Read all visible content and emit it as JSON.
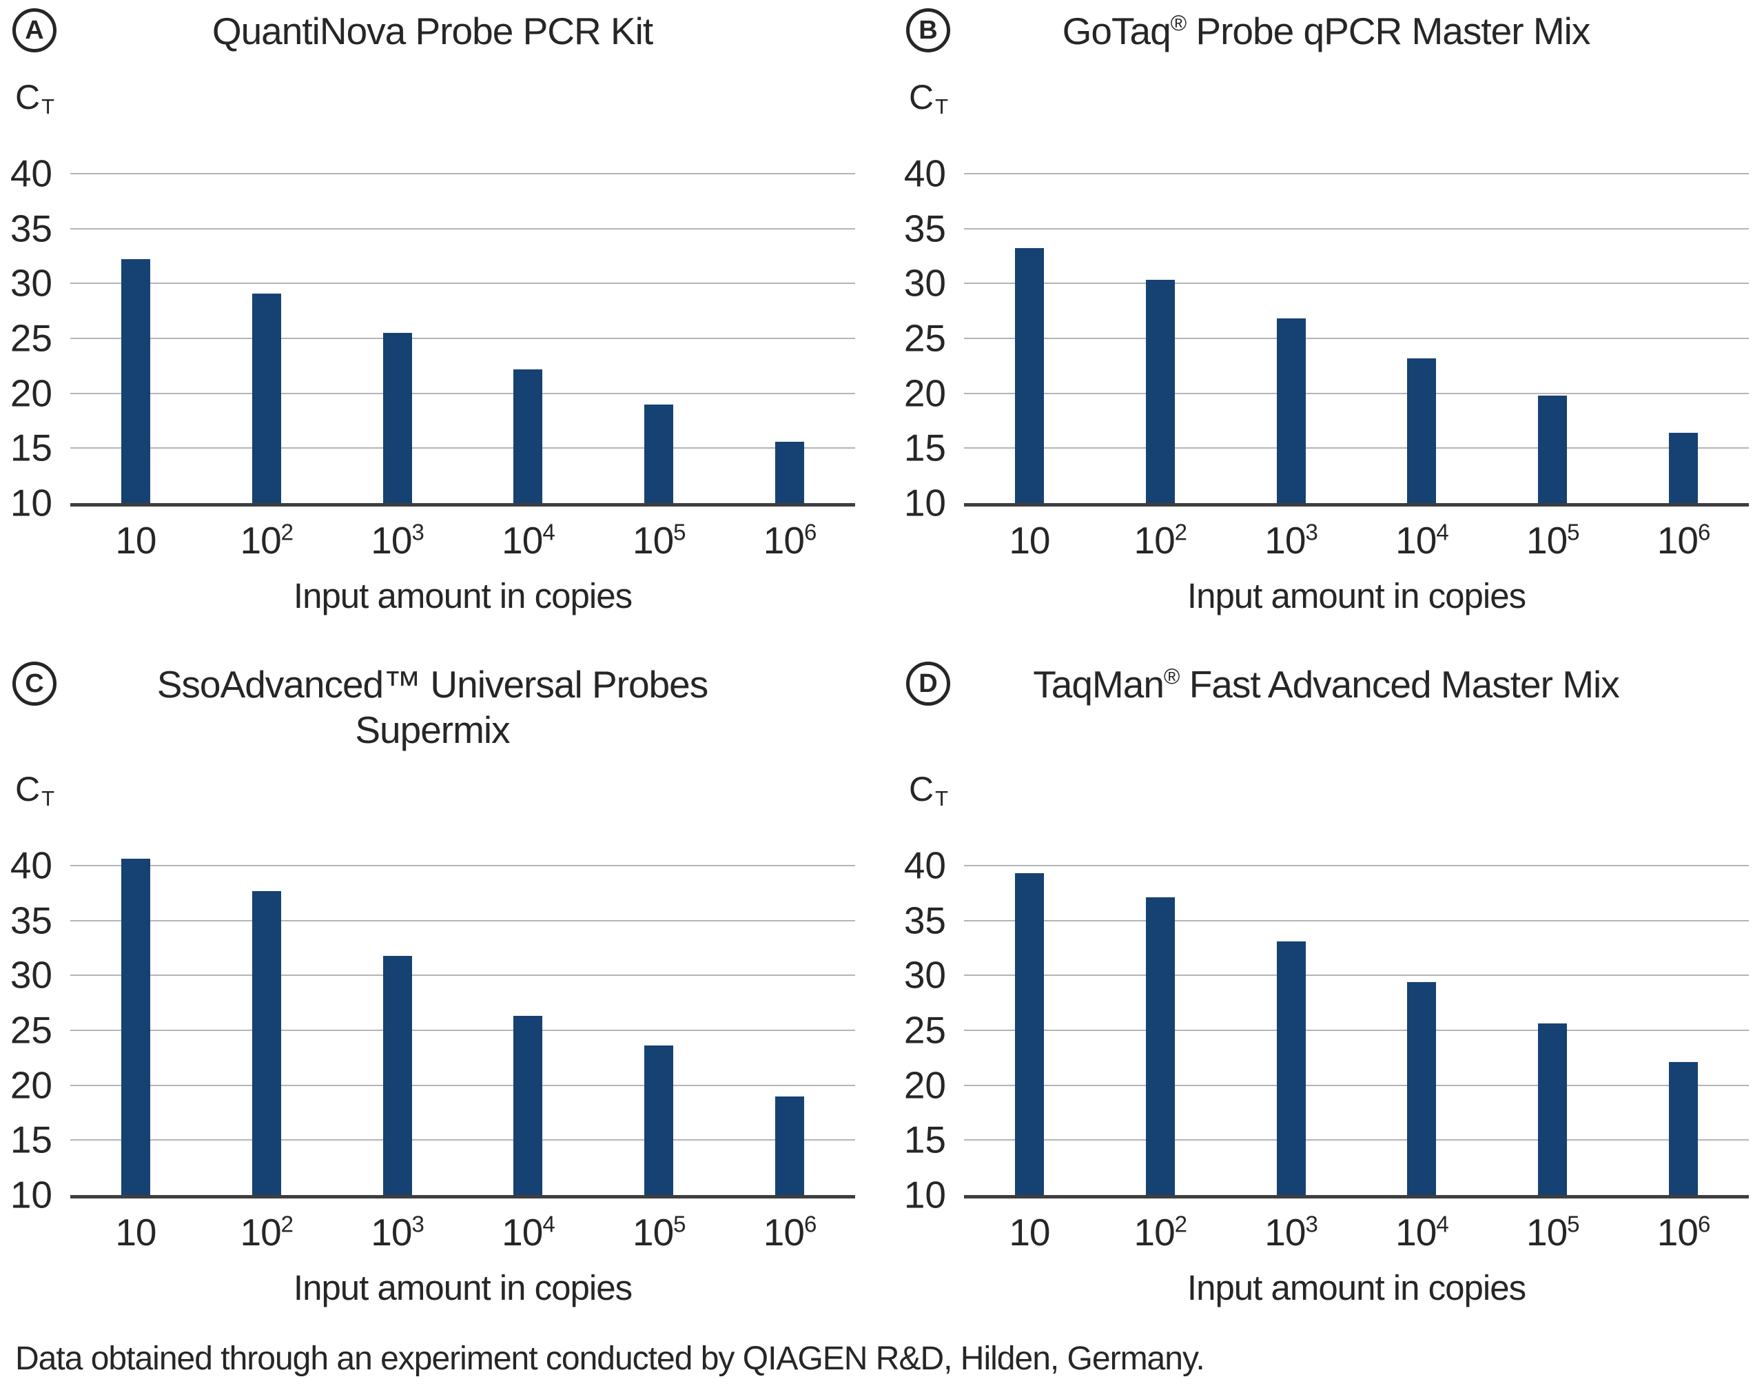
{
  "caption": "Data obtained through an experiment conducted by QIAGEN R&D, Hilden, Germany.",
  "colors": {
    "bar": "#164173",
    "gridline": "#b4b4b4",
    "axis_line": "#3e3e3e",
    "text": "#262626"
  },
  "y_axis": {
    "label_main": "C",
    "label_sub": "T",
    "ticks": [
      40,
      35,
      30,
      25,
      20,
      15,
      10
    ],
    "min": 10,
    "scale_top": 42.5
  },
  "x_axis": {
    "title": "Input amount in copies",
    "categories": [
      "10",
      "10^2",
      "10^3",
      "10^4",
      "10^5",
      "10^6"
    ]
  },
  "chart_data": [
    {
      "id": "A",
      "type": "bar",
      "title": "QuantiNova Probe PCR Kit",
      "title_lines": [
        [
          {
            "text": "QuantiNova Probe PCR Kit"
          }
        ]
      ],
      "categories": [
        "10",
        "10^2",
        "10^3",
        "10^4",
        "10^5",
        "10^6"
      ],
      "values": [
        32.2,
        29.1,
        25.5,
        22.2,
        19.0,
        15.6
      ],
      "xlabel": "Input amount in copies",
      "ylabel": "CT",
      "ylim": [
        10,
        40
      ],
      "grid": true,
      "legend": false
    },
    {
      "id": "B",
      "type": "bar",
      "title": "GoTaq® Probe qPCR Master Mix",
      "title_lines": [
        [
          {
            "text": "GoTaq"
          },
          {
            "text": "®",
            "sup": true
          },
          {
            "text": " Probe qPCR Master Mix"
          }
        ]
      ],
      "categories": [
        "10",
        "10^2",
        "10^3",
        "10^4",
        "10^5",
        "10^6"
      ],
      "values": [
        33.2,
        30.3,
        26.8,
        23.2,
        19.8,
        16.4
      ],
      "xlabel": "Input amount in copies",
      "ylabel": "CT",
      "ylim": [
        10,
        40
      ],
      "grid": true,
      "legend": false
    },
    {
      "id": "C",
      "type": "bar",
      "title": "SsoAdvanced™ Universal Probes Supermix",
      "title_lines": [
        [
          {
            "text": "SsoAdvanced"
          },
          {
            "text": "™"
          },
          {
            "text": " Universal Probes"
          }
        ],
        [
          {
            "text": "Supermix"
          }
        ]
      ],
      "categories": [
        "10",
        "10^2",
        "10^3",
        "10^4",
        "10^5",
        "10^6"
      ],
      "values": [
        40.6,
        37.7,
        31.8,
        26.3,
        23.6,
        19.0
      ],
      "xlabel": "Input amount in copies",
      "ylabel": "CT",
      "ylim": [
        10,
        40
      ],
      "grid": true,
      "legend": false
    },
    {
      "id": "D",
      "type": "bar",
      "title": "TaqMan® Fast Advanced Master Mix",
      "title_lines": [
        [
          {
            "text": "TaqMan"
          },
          {
            "text": "®",
            "sup": true
          },
          {
            "text": " Fast Advanced Master Mix"
          }
        ],
        [
          {
            "text": ""
          }
        ]
      ],
      "categories": [
        "10",
        "10^2",
        "10^3",
        "10^4",
        "10^5",
        "10^6"
      ],
      "values": [
        39.3,
        37.1,
        33.1,
        29.4,
        25.6,
        22.1
      ],
      "xlabel": "Input amount in copies",
      "ylabel": "CT",
      "ylim": [
        10,
        40
      ],
      "grid": true,
      "legend": false
    }
  ]
}
